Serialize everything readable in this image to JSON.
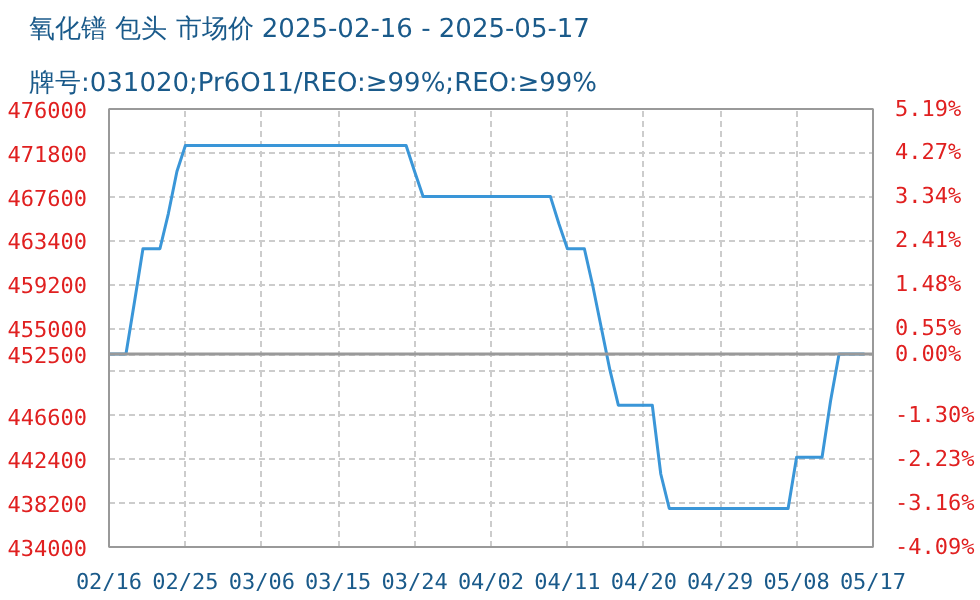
{
  "chart_data": {
    "type": "line",
    "title": "氧化镨 包头 市场价 2025-02-16 - 2025-05-17",
    "subtitle": "牌号:031020;Pr6O11/REO:≥99%;REO:≥99%",
    "x": [
      "2025-02-16",
      "2025-02-17",
      "2025-02-18",
      "2025-02-19",
      "2025-02-20",
      "2025-02-22",
      "2025-02-23",
      "2025-02-24",
      "2025-02-25",
      "2025-03-23",
      "2025-03-24",
      "2025-03-25",
      "2025-04-09",
      "2025-04-10",
      "2025-04-11",
      "2025-04-13",
      "2025-04-14",
      "2025-04-15",
      "2025-04-16",
      "2025-04-17",
      "2025-04-21",
      "2025-04-22",
      "2025-04-23",
      "2025-05-07",
      "2025-05-08",
      "2025-05-11",
      "2025-05-12",
      "2025-05-13",
      "2025-05-16"
    ],
    "series": [
      {
        "color": "#3a96d8",
        "values": [
          452500,
          452500,
          452500,
          457500,
          462600,
          462600,
          466000,
          470000,
          472500,
          472500,
          470000,
          467600,
          467600,
          465000,
          462600,
          462600,
          459000,
          455000,
          451000,
          447600,
          447600,
          441000,
          437700,
          437700,
          442600,
          442600,
          448000,
          452500,
          452500
        ]
      }
    ],
    "xlim": [
      "2025-02-16",
      "2025-05-17"
    ],
    "xticks": [
      {
        "value": "2025-02-16",
        "label": "02/16"
      },
      {
        "value": "2025-02-25",
        "label": "02/25"
      },
      {
        "value": "2025-03-06",
        "label": "03/06"
      },
      {
        "value": "2025-03-15",
        "label": "03/15"
      },
      {
        "value": "2025-03-24",
        "label": "03/24"
      },
      {
        "value": "2025-04-02",
        "label": "04/02"
      },
      {
        "value": "2025-04-11",
        "label": "04/11"
      },
      {
        "value": "2025-04-20",
        "label": "04/20"
      },
      {
        "value": "2025-04-29",
        "label": "04/29"
      },
      {
        "value": "2025-05-08",
        "label": "05/08"
      },
      {
        "value": "2025-05-17",
        "label": "05/17"
      }
    ],
    "ylim": [
      434000,
      476000
    ],
    "yticks": [
      434000,
      438200,
      442400,
      446600,
      {
        "value": 450800,
        "label": null
      },
      452500,
      455000,
      459200,
      463400,
      467600,
      471800,
      476000
    ],
    "y2lim": [
      -4.09,
      5.19
    ],
    "y2ticks": [
      {
        "value": -4.09,
        "label": "-4.09%"
      },
      {
        "value": -3.16,
        "label": "-3.16%"
      },
      {
        "value": -2.23,
        "label": "-2.23%"
      },
      {
        "value": -1.3,
        "label": "-1.30%"
      },
      {
        "value": -0.37,
        "label": null
      },
      {
        "value": 0,
        "label": "0.00%"
      },
      {
        "value": 0.55,
        "label": "0.55%"
      },
      {
        "value": 1.48,
        "label": "1.48%"
      },
      {
        "value": 2.41,
        "label": "2.41%"
      },
      {
        "value": 3.34,
        "label": "3.34%"
      },
      {
        "value": 4.27,
        "label": "4.27%"
      },
      {
        "value": 5.19,
        "label": "5.19%"
      }
    ],
    "ref_lines": [
      {
        "axis": "y",
        "value": 452500,
        "color": "#999999",
        "line_style": "solid"
      }
    ],
    "grid": true,
    "marker": "none",
    "line_style": "solid"
  }
}
